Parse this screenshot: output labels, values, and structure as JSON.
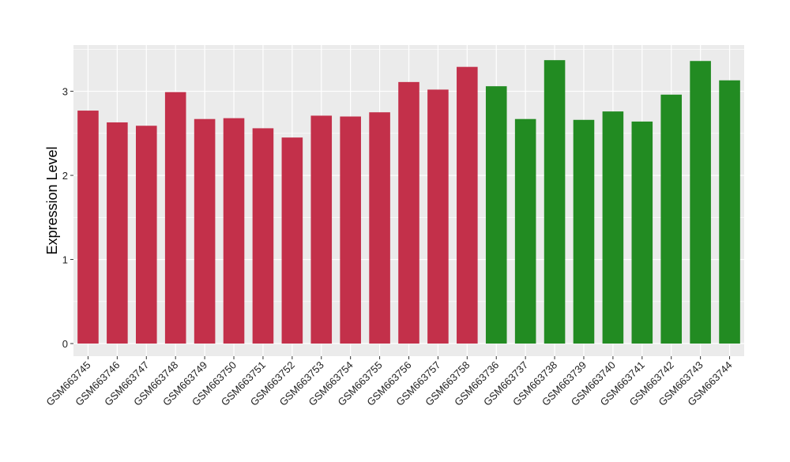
{
  "chart_data": {
    "type": "bar",
    "title": "",
    "xlabel": "",
    "ylabel": "Expression Level",
    "ylim": [
      -0.15,
      3.55
    ],
    "yticks": [
      0,
      1,
      2,
      3
    ],
    "grid": true,
    "legend": "none",
    "categories": [
      "GSM663745",
      "GSM663746",
      "GSM663747",
      "GSM663748",
      "GSM663749",
      "GSM663750",
      "GSM663751",
      "GSM663752",
      "GSM663753",
      "GSM663754",
      "GSM663755",
      "GSM663756",
      "GSM663757",
      "GSM663758",
      "GSM663736",
      "GSM663737",
      "GSM663738",
      "GSM663739",
      "GSM663740",
      "GSM663741",
      "GSM663742",
      "GSM663743",
      "GSM663744"
    ],
    "values": [
      2.77,
      2.63,
      2.59,
      2.99,
      2.67,
      2.68,
      2.56,
      2.45,
      2.71,
      2.7,
      2.75,
      3.11,
      3.02,
      3.29,
      3.06,
      2.67,
      3.37,
      2.66,
      2.76,
      2.64,
      2.96,
      3.36,
      3.13
    ],
    "groups": [
      1,
      1,
      1,
      1,
      1,
      1,
      1,
      1,
      1,
      1,
      1,
      1,
      1,
      1,
      2,
      2,
      2,
      2,
      2,
      2,
      2,
      2,
      2
    ],
    "colors": {
      "group1": "#c3304a",
      "group2": "#228b22",
      "panel": "#ebebeb",
      "grid": "#ffffff"
    }
  }
}
